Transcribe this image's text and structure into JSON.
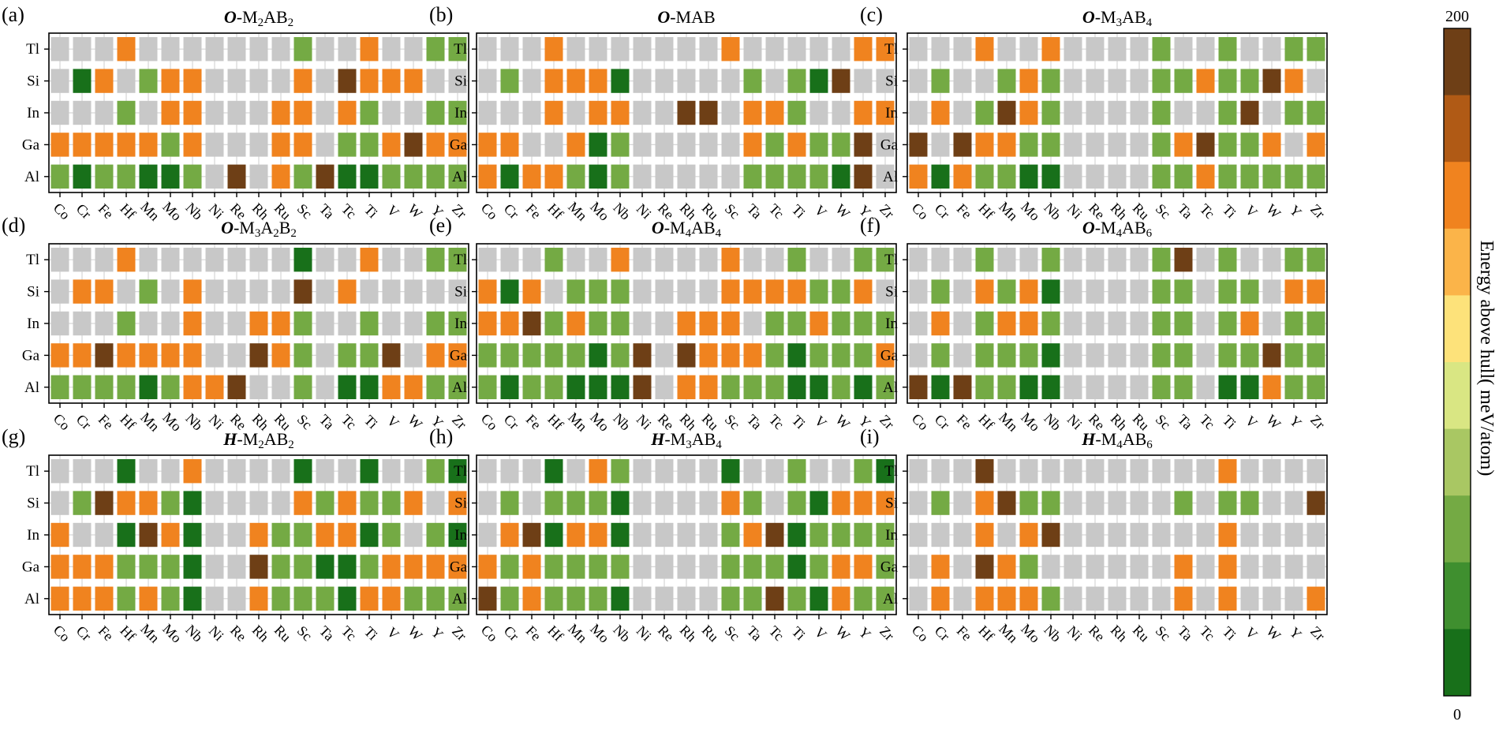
{
  "chart_data": {
    "type": "heatmap",
    "colorbar": {
      "label": "Energy above hull( meV/atom)",
      "max_label": "200",
      "min_label": "0",
      "range": [
        0,
        200
      ],
      "colors": [
        "#18701a",
        "#3f8f2f",
        "#74aa44",
        "#a9c763",
        "#d9e683",
        "#fde27a",
        "#fbb449",
        "#f0831f",
        "#b05a15",
        "#6e3f16"
      ],
      "missing_color": "#c8c8c8"
    },
    "x_categories": [
      "Co",
      "Cr",
      "Fe",
      "Hf",
      "Mn",
      "Mo",
      "Nb",
      "Ni",
      "Re",
      "Rh",
      "Ru",
      "Sc",
      "Ta",
      "Tc",
      "Ti",
      "V",
      "W",
      "Y",
      "Zr"
    ],
    "y_categories": [
      "Tl",
      "Si",
      "In",
      "Ga",
      "Al"
    ],
    "panels": [
      {
        "letter": "(a)",
        "prefix": "O",
        "mid": "-M",
        "s1": "2",
        "s2": "AB",
        "s3": "2",
        "values": {
          "Tl": [
            null,
            null,
            null,
            150,
            null,
            null,
            null,
            null,
            null,
            null,
            null,
            50,
            null,
            null,
            150,
            null,
            null,
            50,
            50
          ],
          "Si": [
            null,
            0,
            150,
            null,
            50,
            150,
            150,
            null,
            null,
            null,
            null,
            150,
            null,
            200,
            150,
            150,
            150,
            null,
            null
          ],
          "In": [
            null,
            null,
            null,
            50,
            null,
            150,
            150,
            null,
            null,
            null,
            150,
            150,
            null,
            150,
            50,
            null,
            null,
            50,
            50
          ],
          "Ga": [
            150,
            150,
            150,
            150,
            150,
            50,
            150,
            null,
            null,
            null,
            150,
            150,
            null,
            50,
            50,
            150,
            200,
            150,
            150
          ],
          "Al": [
            50,
            0,
            50,
            50,
            0,
            0,
            50,
            null,
            200,
            null,
            150,
            50,
            200,
            0,
            0,
            50,
            50,
            50,
            50
          ]
        }
      },
      {
        "letter": "(b)",
        "prefix": "O",
        "mid": "-MAB",
        "s1": "",
        "s2": "",
        "s3": "",
        "values": {
          "Tl": [
            null,
            null,
            null,
            150,
            null,
            null,
            null,
            null,
            null,
            null,
            null,
            150,
            null,
            null,
            null,
            null,
            null,
            150,
            150
          ],
          "Si": [
            null,
            50,
            null,
            150,
            150,
            150,
            0,
            null,
            null,
            null,
            null,
            null,
            50,
            null,
            50,
            0,
            200,
            null,
            null
          ],
          "In": [
            null,
            null,
            null,
            150,
            null,
            150,
            150,
            null,
            null,
            200,
            200,
            null,
            150,
            150,
            50,
            null,
            null,
            150,
            150
          ],
          "Ga": [
            150,
            150,
            null,
            null,
            150,
            0,
            50,
            null,
            null,
            null,
            null,
            null,
            150,
            50,
            150,
            50,
            50,
            200,
            null
          ],
          "Al": [
            150,
            0,
            150,
            150,
            50,
            0,
            50,
            null,
            null,
            null,
            null,
            null,
            50,
            50,
            50,
            50,
            0,
            200,
            null
          ]
        }
      },
      {
        "letter": "(c)",
        "prefix": "O",
        "mid": "-M",
        "s1": "3",
        "s2": "AB",
        "s3": "4",
        "values": {
          "Tl": [
            null,
            null,
            null,
            150,
            null,
            null,
            150,
            null,
            null,
            null,
            null,
            50,
            null,
            null,
            50,
            null,
            null,
            50,
            50
          ],
          "Si": [
            null,
            50,
            null,
            null,
            50,
            150,
            50,
            null,
            null,
            null,
            null,
            50,
            50,
            150,
            50,
            50,
            200,
            150,
            null
          ],
          "In": [
            null,
            150,
            null,
            50,
            200,
            150,
            50,
            null,
            null,
            null,
            null,
            50,
            null,
            null,
            50,
            200,
            null,
            50,
            50
          ],
          "Ga": [
            200,
            null,
            200,
            150,
            150,
            50,
            50,
            null,
            null,
            null,
            null,
            50,
            150,
            200,
            50,
            50,
            150,
            null,
            150
          ],
          "Al": [
            150,
            0,
            150,
            50,
            50,
            0,
            0,
            null,
            null,
            null,
            null,
            50,
            50,
            150,
            50,
            50,
            50,
            50,
            50
          ]
        }
      },
      {
        "letter": "(d)",
        "prefix": "O",
        "mid": "-M",
        "s1": "3",
        "s2": "A",
        "s3": "2",
        "tail": "B",
        "s4": "2",
        "values": {
          "Tl": [
            null,
            null,
            null,
            150,
            null,
            null,
            null,
            null,
            null,
            null,
            null,
            0,
            null,
            null,
            150,
            null,
            null,
            50,
            50
          ],
          "Si": [
            null,
            150,
            150,
            null,
            50,
            null,
            150,
            null,
            null,
            null,
            null,
            200,
            null,
            150,
            null,
            null,
            null,
            null,
            null
          ],
          "In": [
            null,
            null,
            null,
            50,
            null,
            null,
            150,
            null,
            null,
            150,
            150,
            50,
            null,
            null,
            50,
            null,
            null,
            50,
            50
          ],
          "Ga": [
            150,
            150,
            200,
            150,
            150,
            150,
            150,
            null,
            null,
            200,
            150,
            50,
            null,
            50,
            50,
            200,
            null,
            150,
            150
          ],
          "Al": [
            50,
            50,
            50,
            50,
            0,
            50,
            150,
            150,
            200,
            null,
            null,
            50,
            null,
            0,
            0,
            150,
            150,
            50,
            50
          ]
        }
      },
      {
        "letter": "(e)",
        "prefix": "O",
        "mid": "-M",
        "s1": "4",
        "s2": "AB",
        "s3": "4",
        "values": {
          "Tl": [
            null,
            null,
            null,
            50,
            null,
            null,
            150,
            null,
            null,
            null,
            null,
            150,
            null,
            null,
            50,
            null,
            null,
            50,
            50
          ],
          "Si": [
            150,
            0,
            150,
            null,
            50,
            50,
            50,
            null,
            null,
            null,
            null,
            150,
            150,
            150,
            150,
            50,
            50,
            150,
            null
          ],
          "In": [
            150,
            150,
            200,
            50,
            150,
            50,
            50,
            null,
            null,
            150,
            150,
            150,
            null,
            50,
            50,
            150,
            50,
            50,
            50
          ],
          "Ga": [
            50,
            50,
            50,
            50,
            50,
            0,
            50,
            200,
            null,
            200,
            150,
            150,
            150,
            50,
            0,
            50,
            50,
            50,
            150
          ],
          "Al": [
            50,
            0,
            50,
            50,
            0,
            0,
            0,
            200,
            null,
            150,
            150,
            50,
            50,
            50,
            0,
            0,
            50,
            0,
            50
          ]
        }
      },
      {
        "letter": "(f)",
        "prefix": "O",
        "mid": "-M",
        "s1": "4",
        "s2": "AB",
        "s3": "6",
        "values": {
          "Tl": [
            null,
            null,
            null,
            50,
            null,
            null,
            50,
            null,
            null,
            null,
            null,
            50,
            200,
            null,
            50,
            null,
            null,
            50,
            50
          ],
          "Si": [
            null,
            50,
            null,
            150,
            50,
            150,
            0,
            null,
            null,
            null,
            null,
            50,
            50,
            null,
            50,
            50,
            null,
            150,
            150
          ],
          "In": [
            null,
            150,
            null,
            50,
            150,
            150,
            50,
            null,
            null,
            null,
            null,
            50,
            50,
            null,
            50,
            150,
            null,
            50,
            50
          ],
          "Ga": [
            null,
            50,
            null,
            50,
            50,
            50,
            0,
            null,
            null,
            null,
            null,
            50,
            50,
            null,
            50,
            50,
            200,
            50,
            50
          ],
          "Al": [
            200,
            0,
            200,
            50,
            50,
            0,
            0,
            null,
            null,
            null,
            null,
            50,
            50,
            null,
            0,
            0,
            150,
            50,
            50
          ]
        }
      },
      {
        "letter": "(g)",
        "prefix": "H",
        "mid": "-M",
        "s1": "2",
        "s2": "AB",
        "s3": "2",
        "values": {
          "Tl": [
            null,
            null,
            null,
            0,
            null,
            null,
            150,
            null,
            null,
            null,
            null,
            0,
            null,
            null,
            0,
            null,
            null,
            50,
            0
          ],
          "Si": [
            null,
            50,
            200,
            150,
            150,
            50,
            0,
            null,
            null,
            null,
            null,
            150,
            50,
            150,
            50,
            50,
            150,
            null,
            150
          ],
          "In": [
            150,
            null,
            null,
            0,
            200,
            150,
            0,
            null,
            null,
            150,
            50,
            50,
            150,
            150,
            0,
            50,
            null,
            50,
            0
          ],
          "Ga": [
            150,
            150,
            150,
            50,
            50,
            50,
            0,
            null,
            null,
            200,
            50,
            50,
            0,
            0,
            50,
            150,
            150,
            150,
            150
          ],
          "Al": [
            150,
            150,
            150,
            50,
            150,
            50,
            0,
            null,
            null,
            150,
            50,
            50,
            50,
            0,
            150,
            150,
            50,
            50,
            50
          ]
        }
      },
      {
        "letter": "(h)",
        "prefix": "H",
        "mid": "-M",
        "s1": "3",
        "s2": "AB",
        "s3": "4",
        "values": {
          "Tl": [
            null,
            null,
            null,
            0,
            null,
            150,
            50,
            null,
            null,
            null,
            null,
            0,
            null,
            null,
            50,
            null,
            null,
            50,
            0
          ],
          "Si": [
            null,
            50,
            null,
            50,
            50,
            50,
            0,
            null,
            null,
            null,
            null,
            150,
            50,
            null,
            50,
            0,
            150,
            150,
            150
          ],
          "In": [
            null,
            150,
            200,
            0,
            150,
            150,
            0,
            null,
            null,
            null,
            null,
            50,
            150,
            200,
            0,
            50,
            50,
            50,
            50
          ],
          "Ga": [
            150,
            50,
            150,
            50,
            50,
            50,
            50,
            null,
            null,
            null,
            null,
            50,
            50,
            50,
            0,
            50,
            150,
            150,
            50
          ],
          "Al": [
            200,
            50,
            150,
            50,
            50,
            50,
            0,
            null,
            null,
            null,
            null,
            50,
            50,
            200,
            50,
            0,
            150,
            50,
            50
          ]
        }
      },
      {
        "letter": "(i)",
        "prefix": "H",
        "mid": "-M",
        "s1": "4",
        "s2": "AB",
        "s3": "6",
        "values": {
          "Tl": [
            null,
            null,
            null,
            200,
            null,
            null,
            null,
            null,
            null,
            null,
            null,
            null,
            null,
            null,
            150,
            null,
            null,
            null,
            null
          ],
          "Si": [
            null,
            50,
            null,
            150,
            200,
            50,
            50,
            null,
            null,
            null,
            null,
            null,
            50,
            null,
            50,
            50,
            null,
            null,
            200
          ],
          "In": [
            null,
            null,
            null,
            150,
            null,
            150,
            200,
            null,
            null,
            null,
            null,
            null,
            null,
            null,
            150,
            null,
            null,
            null,
            null
          ],
          "Ga": [
            null,
            150,
            null,
            200,
            150,
            50,
            null,
            null,
            null,
            null,
            null,
            null,
            150,
            null,
            150,
            null,
            null,
            null,
            null
          ],
          "Al": [
            null,
            150,
            null,
            150,
            150,
            150,
            50,
            null,
            null,
            null,
            null,
            null,
            150,
            null,
            150,
            null,
            null,
            null,
            150
          ]
        }
      }
    ]
  }
}
